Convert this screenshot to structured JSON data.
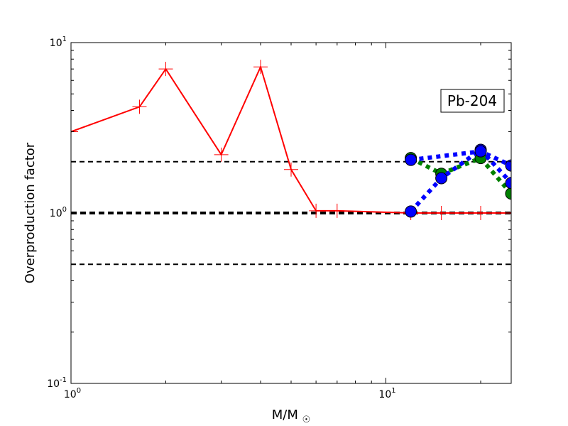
{
  "chart_data": {
    "type": "line",
    "title": "",
    "xlabel": "M/M☉",
    "ylabel": "Overproduction factor",
    "xscale": "log",
    "yscale": "log",
    "xlim": [
      1,
      25
    ],
    "ylim": [
      0.1,
      10
    ],
    "x_tick_labels": [
      {
        "value": 1,
        "base": "10",
        "exp": "0"
      },
      {
        "value": 10,
        "base": "10",
        "exp": "1"
      }
    ],
    "y_tick_labels": [
      {
        "value": 0.1,
        "base": "10",
        "exp": "-1"
      },
      {
        "value": 1,
        "base": "10",
        "exp": "0"
      },
      {
        "value": 10,
        "base": "10",
        "exp": "1"
      }
    ],
    "annotation": "Pb-204",
    "reference_lines": [
      {
        "y": 2.0,
        "style": "dashed",
        "color": "#000000",
        "width": 2
      },
      {
        "y": 1.0,
        "style": "dashed",
        "color": "#000000",
        "width": 4
      },
      {
        "y": 0.5,
        "style": "dashed",
        "color": "#000000",
        "width": 2
      }
    ],
    "series": [
      {
        "color": "#ff0000",
        "line": "solid",
        "marker": "plus",
        "points": [
          [
            1.0,
            3.0
          ],
          [
            1.65,
            4.2
          ],
          [
            2.0,
            7.0
          ],
          [
            3.0,
            2.2
          ],
          [
            4.0,
            7.2
          ],
          [
            5.0,
            1.8
          ],
          [
            6.0,
            1.03
          ],
          [
            7.0,
            1.03
          ],
          [
            12.0,
            1.0
          ],
          [
            15.0,
            1.0
          ],
          [
            20.0,
            1.0
          ],
          [
            25.0,
            1.0
          ]
        ]
      },
      {
        "color": "#008000",
        "line": "dotted",
        "marker": "circle",
        "points": [
          [
            12.0,
            2.1
          ],
          [
            15.0,
            1.7
          ],
          [
            20.0,
            2.1
          ],
          [
            25.0,
            1.3
          ]
        ]
      },
      {
        "color": "#0000ff",
        "line": "dotted",
        "marker": "circle",
        "points": [
          [
            12.0,
            1.02
          ],
          [
            15.0,
            1.6
          ],
          [
            20.0,
            2.35
          ],
          [
            25.0,
            1.5
          ]
        ]
      },
      {
        "color": "#0000ff",
        "line": "dotted",
        "marker": "circle",
        "points": [
          [
            12.0,
            2.05
          ],
          [
            20.0,
            2.3
          ],
          [
            25.0,
            1.9
          ]
        ]
      }
    ]
  }
}
